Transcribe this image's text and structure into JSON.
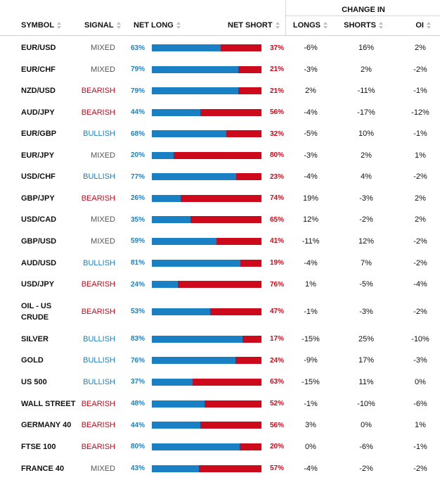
{
  "header": {
    "change_in": "CHANGE IN",
    "symbol": "SYMBOL",
    "signal": "SIGNAL",
    "net_long": "NET LONG",
    "net_short": "NET SHORT",
    "longs": "LONGS",
    "shorts": "SHORTS",
    "oi": "OI"
  },
  "colors": {
    "bullish": "#1a80c4",
    "bearish": "#cc0a1b",
    "mixed": "#555555"
  },
  "rows": [
    {
      "symbol": "EUR/USD",
      "signal": "MIXED",
      "net_long": "63%",
      "net_short": "37%",
      "long_frac": 0.63,
      "longs": "-6%",
      "shorts": "16%",
      "oi": "2%"
    },
    {
      "symbol": "EUR/CHF",
      "signal": "MIXED",
      "net_long": "79%",
      "net_short": "21%",
      "long_frac": 0.79,
      "longs": "-3%",
      "shorts": "2%",
      "oi": "-2%"
    },
    {
      "symbol": "NZD/USD",
      "signal": "BEARISH",
      "net_long": "79%",
      "net_short": "21%",
      "long_frac": 0.79,
      "longs": "2%",
      "shorts": "-11%",
      "oi": "-1%"
    },
    {
      "symbol": "AUD/JPY",
      "signal": "BEARISH",
      "net_long": "44%",
      "net_short": "56%",
      "long_frac": 0.44,
      "longs": "-4%",
      "shorts": "-17%",
      "oi": "-12%"
    },
    {
      "symbol": "EUR/GBP",
      "signal": "BULLISH",
      "net_long": "68%",
      "net_short": "32%",
      "long_frac": 0.68,
      "longs": "-5%",
      "shorts": "10%",
      "oi": "-1%"
    },
    {
      "symbol": "EUR/JPY",
      "signal": "MIXED",
      "net_long": "20%",
      "net_short": "80%",
      "long_frac": 0.2,
      "longs": "-3%",
      "shorts": "2%",
      "oi": "1%"
    },
    {
      "symbol": "USD/CHF",
      "signal": "BULLISH",
      "net_long": "77%",
      "net_short": "23%",
      "long_frac": 0.77,
      "longs": "-4%",
      "shorts": "4%",
      "oi": "-2%"
    },
    {
      "symbol": "GBP/JPY",
      "signal": "BEARISH",
      "net_long": "26%",
      "net_short": "74%",
      "long_frac": 0.26,
      "longs": "19%",
      "shorts": "-3%",
      "oi": "2%"
    },
    {
      "symbol": "USD/CAD",
      "signal": "MIXED",
      "net_long": "35%",
      "net_short": "65%",
      "long_frac": 0.35,
      "longs": "12%",
      "shorts": "-2%",
      "oi": "2%"
    },
    {
      "symbol": "GBP/USD",
      "signal": "MIXED",
      "net_long": "59%",
      "net_short": "41%",
      "long_frac": 0.59,
      "longs": "-11%",
      "shorts": "12%",
      "oi": "-2%"
    },
    {
      "symbol": "AUD/USD",
      "signal": "BULLISH",
      "net_long": "81%",
      "net_short": "19%",
      "long_frac": 0.81,
      "longs": "-4%",
      "shorts": "7%",
      "oi": "-2%"
    },
    {
      "symbol": "USD/JPY",
      "signal": "BEARISH",
      "net_long": "24%",
      "net_short": "76%",
      "long_frac": 0.24,
      "longs": "1%",
      "shorts": "-5%",
      "oi": "-4%"
    },
    {
      "symbol": "OIL - US CRUDE",
      "signal": "BEARISH",
      "net_long": "53%",
      "net_short": "47%",
      "long_frac": 0.53,
      "longs": "-1%",
      "shorts": "-3%",
      "oi": "-2%"
    },
    {
      "symbol": "SILVER",
      "signal": "BULLISH",
      "net_long": "83%",
      "net_short": "17%",
      "long_frac": 0.83,
      "longs": "-15%",
      "shorts": "25%",
      "oi": "-10%"
    },
    {
      "symbol": "GOLD",
      "signal": "BULLISH",
      "net_long": "76%",
      "net_short": "24%",
      "long_frac": 0.76,
      "longs": "-9%",
      "shorts": "17%",
      "oi": "-3%"
    },
    {
      "symbol": "US 500",
      "signal": "BULLISH",
      "net_long": "37%",
      "net_short": "63%",
      "long_frac": 0.37,
      "longs": "-15%",
      "shorts": "11%",
      "oi": "0%"
    },
    {
      "symbol": "WALL STREET",
      "signal": "BEARISH",
      "net_long": "48%",
      "net_short": "52%",
      "long_frac": 0.48,
      "longs": "-1%",
      "shorts": "-10%",
      "oi": "-6%"
    },
    {
      "symbol": "GERMANY 40",
      "signal": "BEARISH",
      "net_long": "44%",
      "net_short": "56%",
      "long_frac": 0.44,
      "longs": "3%",
      "shorts": "0%",
      "oi": "1%"
    },
    {
      "symbol": "FTSE 100",
      "signal": "BEARISH",
      "net_long": "80%",
      "net_short": "20%",
      "long_frac": 0.8,
      "longs": "0%",
      "shorts": "-6%",
      "oi": "-1%"
    },
    {
      "symbol": "FRANCE 40",
      "signal": "MIXED",
      "net_long": "43%",
      "net_short": "57%",
      "long_frac": 0.43,
      "longs": "-4%",
      "shorts": "-2%",
      "oi": "-2%"
    }
  ]
}
